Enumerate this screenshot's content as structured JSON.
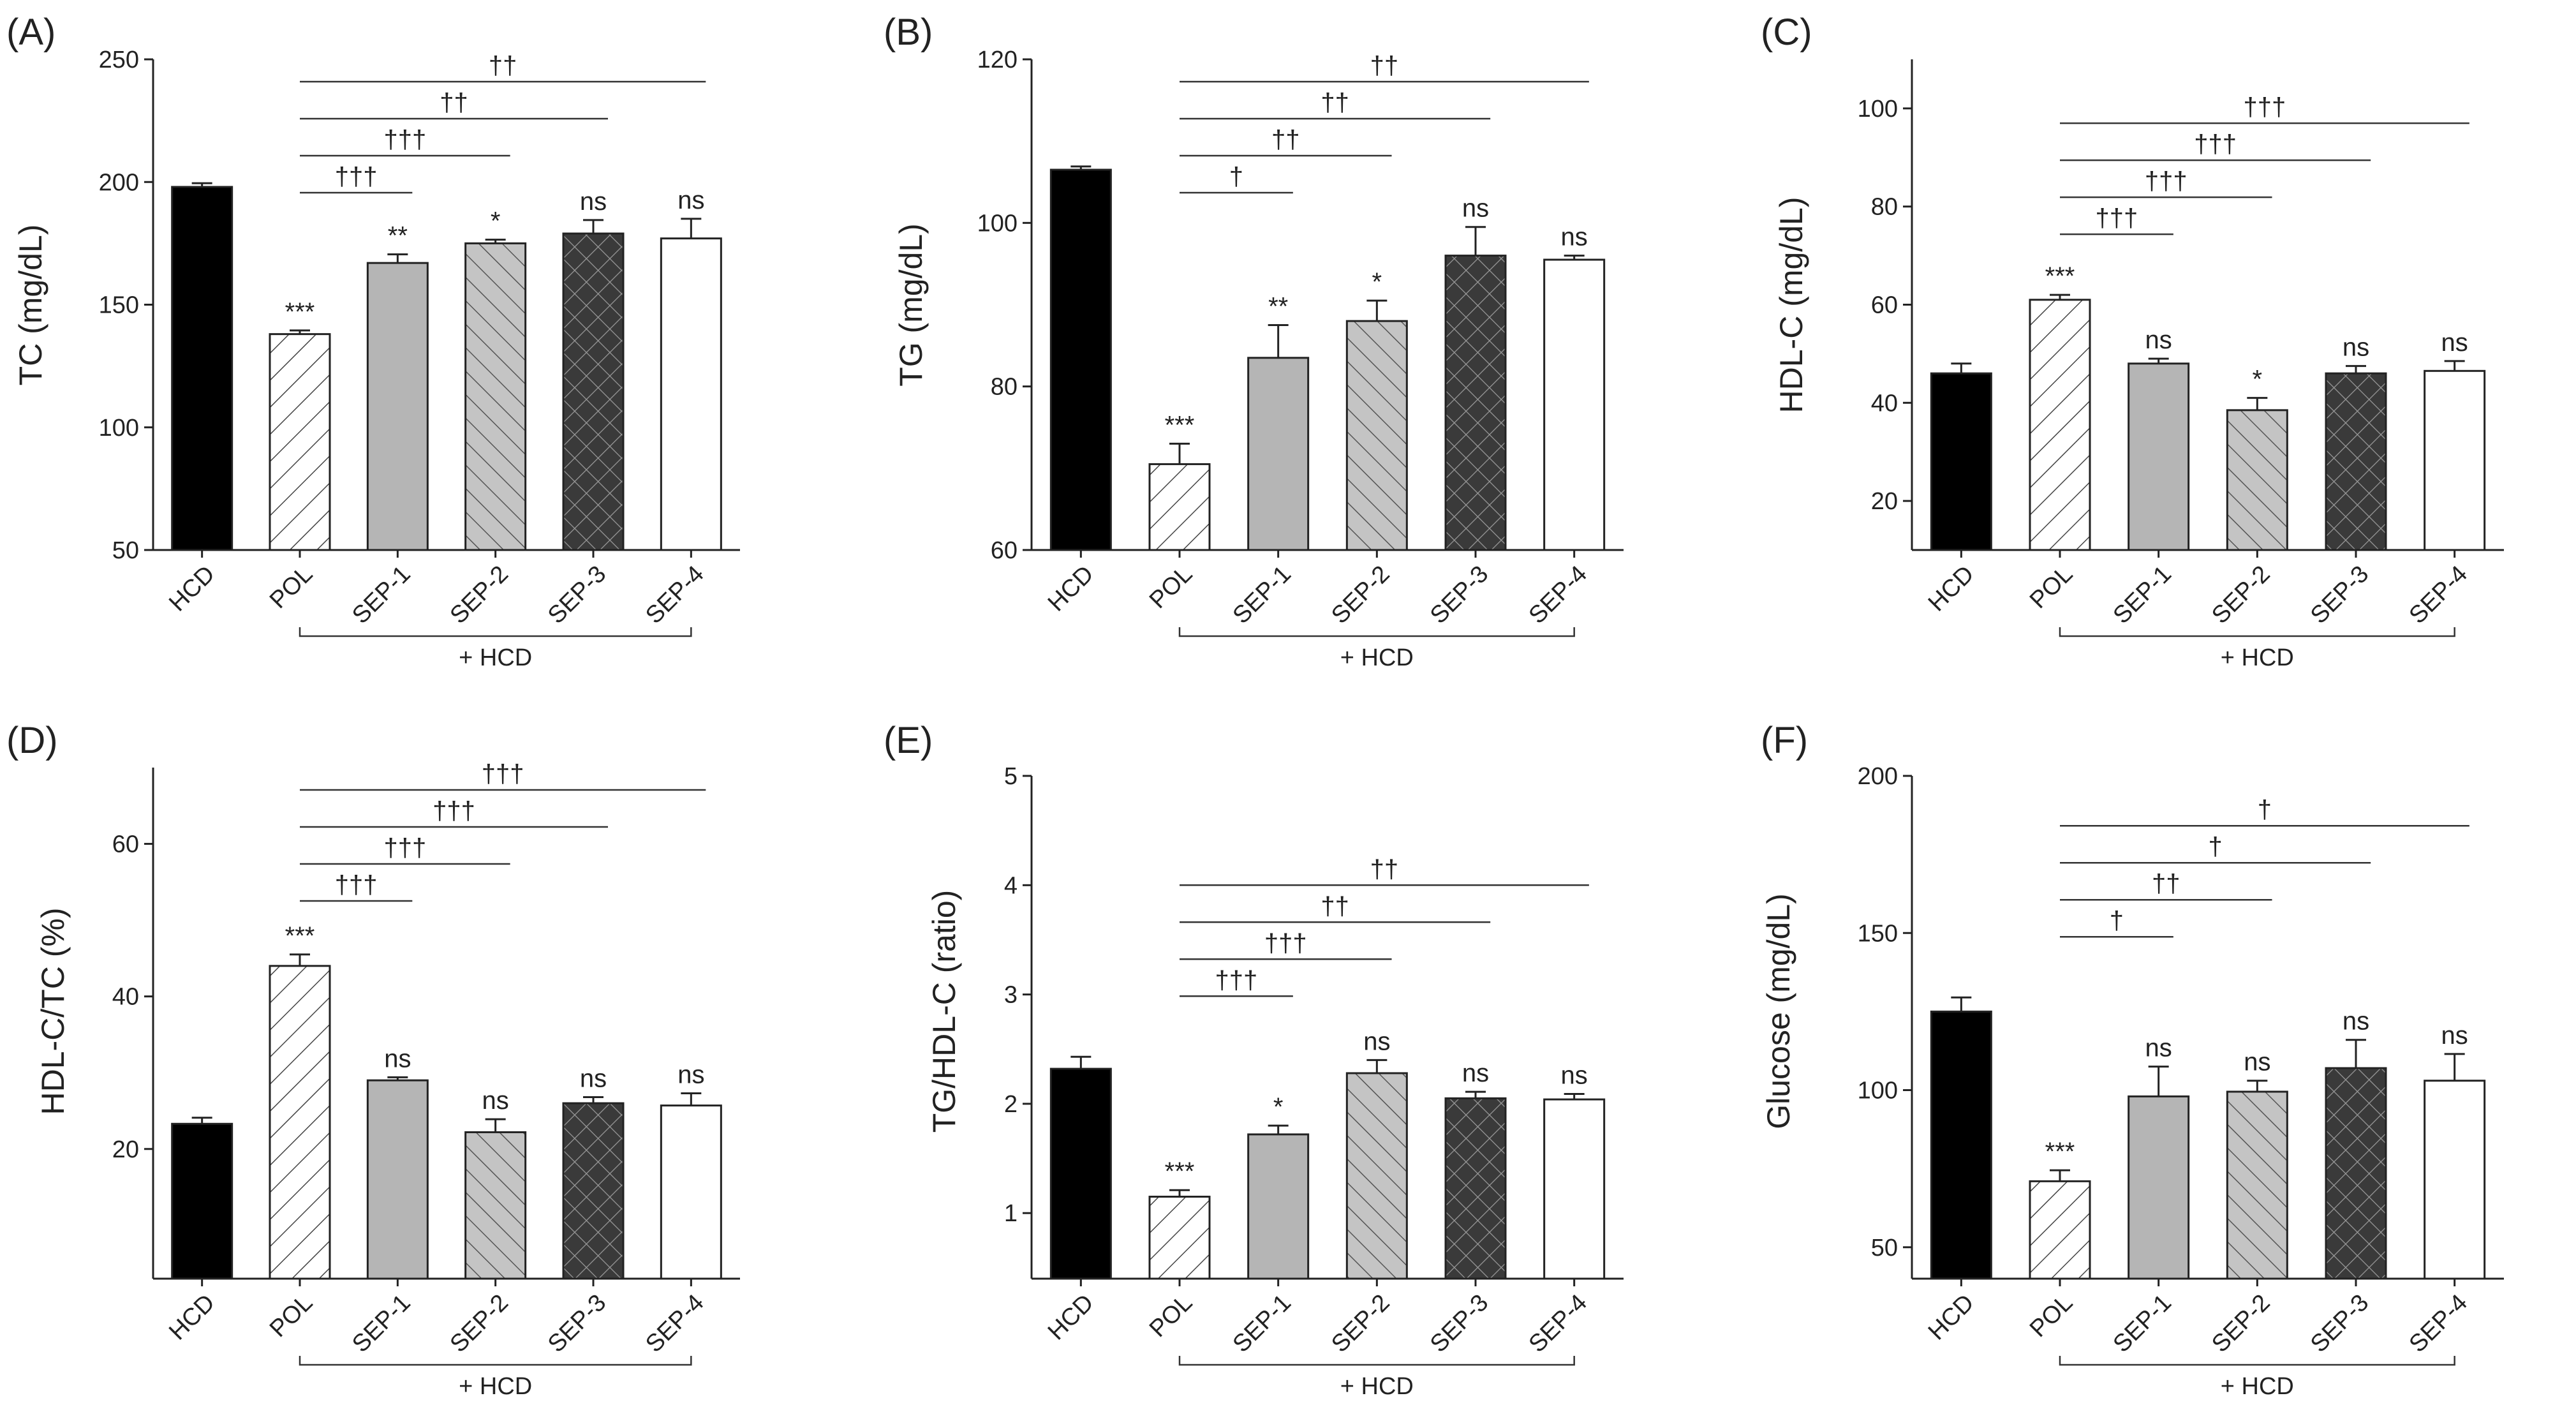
{
  "figure": {
    "categories": [
      "HCD",
      "POL",
      "SEP-1",
      "SEP-2",
      "SEP-3",
      "SEP-4"
    ],
    "group_label": "+ HCD",
    "styles": {
      "HCD": {
        "fill": "#000000",
        "pattern": "solid"
      },
      "POL": {
        "fill": "#ffffff",
        "pattern": "diag-sparse"
      },
      "SEP-1": {
        "fill": "#b5b5b5",
        "pattern": "solid"
      },
      "SEP-2": {
        "fill": "#c4c4c4",
        "pattern": "diag-dense"
      },
      "SEP-3": {
        "fill": "#3a3a3a",
        "pattern": "crosshatch"
      },
      "SEP-4": {
        "fill": "#ffffff",
        "pattern": "solid"
      }
    }
  },
  "chart_data": [
    {
      "type": "bar",
      "panel_label": "(A)",
      "ylabel": "TC (mg/dL)",
      "ylim": [
        50,
        250
      ],
      "yticks": [
        50,
        100,
        150,
        200,
        250
      ],
      "categories": [
        "HCD",
        "POL",
        "SEP-1",
        "SEP-2",
        "SEP-3",
        "SEP-4"
      ],
      "values": [
        198,
        138,
        167,
        175,
        179,
        177
      ],
      "errors": [
        1.5,
        1.5,
        3.5,
        1.5,
        5.5,
        8
      ],
      "annotations": [
        "",
        "***",
        "**",
        "*",
        "ns",
        "ns"
      ],
      "comparisons": [
        {
          "to": "SEP-1",
          "label": "†††"
        },
        {
          "to": "SEP-2",
          "label": "†††"
        },
        {
          "to": "SEP-3",
          "label": "††"
        },
        {
          "to": "SEP-4",
          "label": "††"
        }
      ]
    },
    {
      "type": "bar",
      "panel_label": "(B)",
      "ylabel": "TG (mg/dL)",
      "ylim": [
        60,
        120
      ],
      "yticks": [
        60,
        80,
        100,
        120
      ],
      "categories": [
        "HCD",
        "POL",
        "SEP-1",
        "SEP-2",
        "SEP-3",
        "SEP-4"
      ],
      "values": [
        106.5,
        70.5,
        83.5,
        88,
        96,
        95.5
      ],
      "errors": [
        0.4,
        2.5,
        4,
        2.5,
        3.5,
        0.5
      ],
      "annotations": [
        "",
        "***",
        "**",
        "*",
        "ns",
        "ns"
      ],
      "comparisons": [
        {
          "to": "SEP-1",
          "label": "†"
        },
        {
          "to": "SEP-2",
          "label": "††"
        },
        {
          "to": "SEP-3",
          "label": "††"
        },
        {
          "to": "SEP-4",
          "label": "††"
        }
      ]
    },
    {
      "type": "bar",
      "panel_label": "(C)",
      "ylabel": "HDL-C (mg/dL)",
      "ylim": [
        10,
        110
      ],
      "yticks": [
        20,
        40,
        60,
        80,
        100
      ],
      "categories": [
        "HCD",
        "POL",
        "SEP-1",
        "SEP-2",
        "SEP-3",
        "SEP-4"
      ],
      "values": [
        46,
        61,
        48,
        38.5,
        46,
        46.5
      ],
      "errors": [
        2,
        1,
        1,
        2.5,
        1.5,
        2
      ],
      "annotations": [
        "",
        "***",
        "ns",
        "*",
        "ns",
        "ns"
      ],
      "comparisons": [
        {
          "to": "SEP-1",
          "label": "†††"
        },
        {
          "to": "SEP-2",
          "label": "†††"
        },
        {
          "to": "SEP-3",
          "label": "†††"
        },
        {
          "to": "SEP-4",
          "label": "†††"
        }
      ]
    },
    {
      "type": "bar",
      "panel_label": "(D)",
      "ylabel": "HDL-C/TC (%)",
      "ylim": [
        3,
        70
      ],
      "yticks": [
        20,
        40,
        60
      ],
      "categories": [
        "HCD",
        "POL",
        "SEP-1",
        "SEP-2",
        "SEP-3",
        "SEP-4"
      ],
      "values": [
        23.3,
        44,
        29,
        22.2,
        26,
        25.7
      ],
      "errors": [
        0.8,
        1.5,
        0.4,
        1.7,
        0.8,
        1.6
      ],
      "annotations": [
        "",
        "***",
        "ns",
        "ns",
        "ns",
        "ns"
      ],
      "comparisons": [
        {
          "to": "SEP-1",
          "label": "†††"
        },
        {
          "to": "SEP-2",
          "label": "†††"
        },
        {
          "to": "SEP-3",
          "label": "†††"
        },
        {
          "to": "SEP-4",
          "label": "†††"
        }
      ]
    },
    {
      "type": "bar",
      "panel_label": "(E)",
      "ylabel": "TG/HDL-C (ratio)",
      "ylim": [
        0.4,
        5
      ],
      "yticks": [
        1,
        2,
        3,
        4,
        5
      ],
      "categories": [
        "HCD",
        "POL",
        "SEP-1",
        "SEP-2",
        "SEP-3",
        "SEP-4"
      ],
      "values": [
        2.32,
        1.15,
        1.72,
        2.28,
        2.05,
        2.04
      ],
      "errors": [
        0.11,
        0.06,
        0.08,
        0.12,
        0.06,
        0.05
      ],
      "annotations": [
        "",
        "***",
        "*",
        "ns",
        "ns",
        "ns"
      ],
      "comparisons": [
        {
          "to": "SEP-1",
          "label": "†††"
        },
        {
          "to": "SEP-2",
          "label": "†††"
        },
        {
          "to": "SEP-3",
          "label": "††"
        },
        {
          "to": "SEP-4",
          "label": "††"
        }
      ]
    },
    {
      "type": "bar",
      "panel_label": "(F)",
      "ylabel": "Glucose (mg/dL)",
      "ylim": [
        40,
        200
      ],
      "yticks": [
        50,
        100,
        150,
        200
      ],
      "categories": [
        "HCD",
        "POL",
        "SEP-1",
        "SEP-2",
        "SEP-3",
        "SEP-4"
      ],
      "values": [
        125,
        71,
        98,
        99.5,
        107,
        103
      ],
      "errors": [
        4.5,
        3.5,
        9.5,
        3.5,
        9,
        8.5
      ],
      "annotations": [
        "",
        "***",
        "ns",
        "ns",
        "ns",
        "ns"
      ],
      "comparisons": [
        {
          "to": "SEP-1",
          "label": "†"
        },
        {
          "to": "SEP-2",
          "label": "††"
        },
        {
          "to": "SEP-3",
          "label": "†"
        },
        {
          "to": "SEP-4",
          "label": "†"
        }
      ]
    }
  ]
}
